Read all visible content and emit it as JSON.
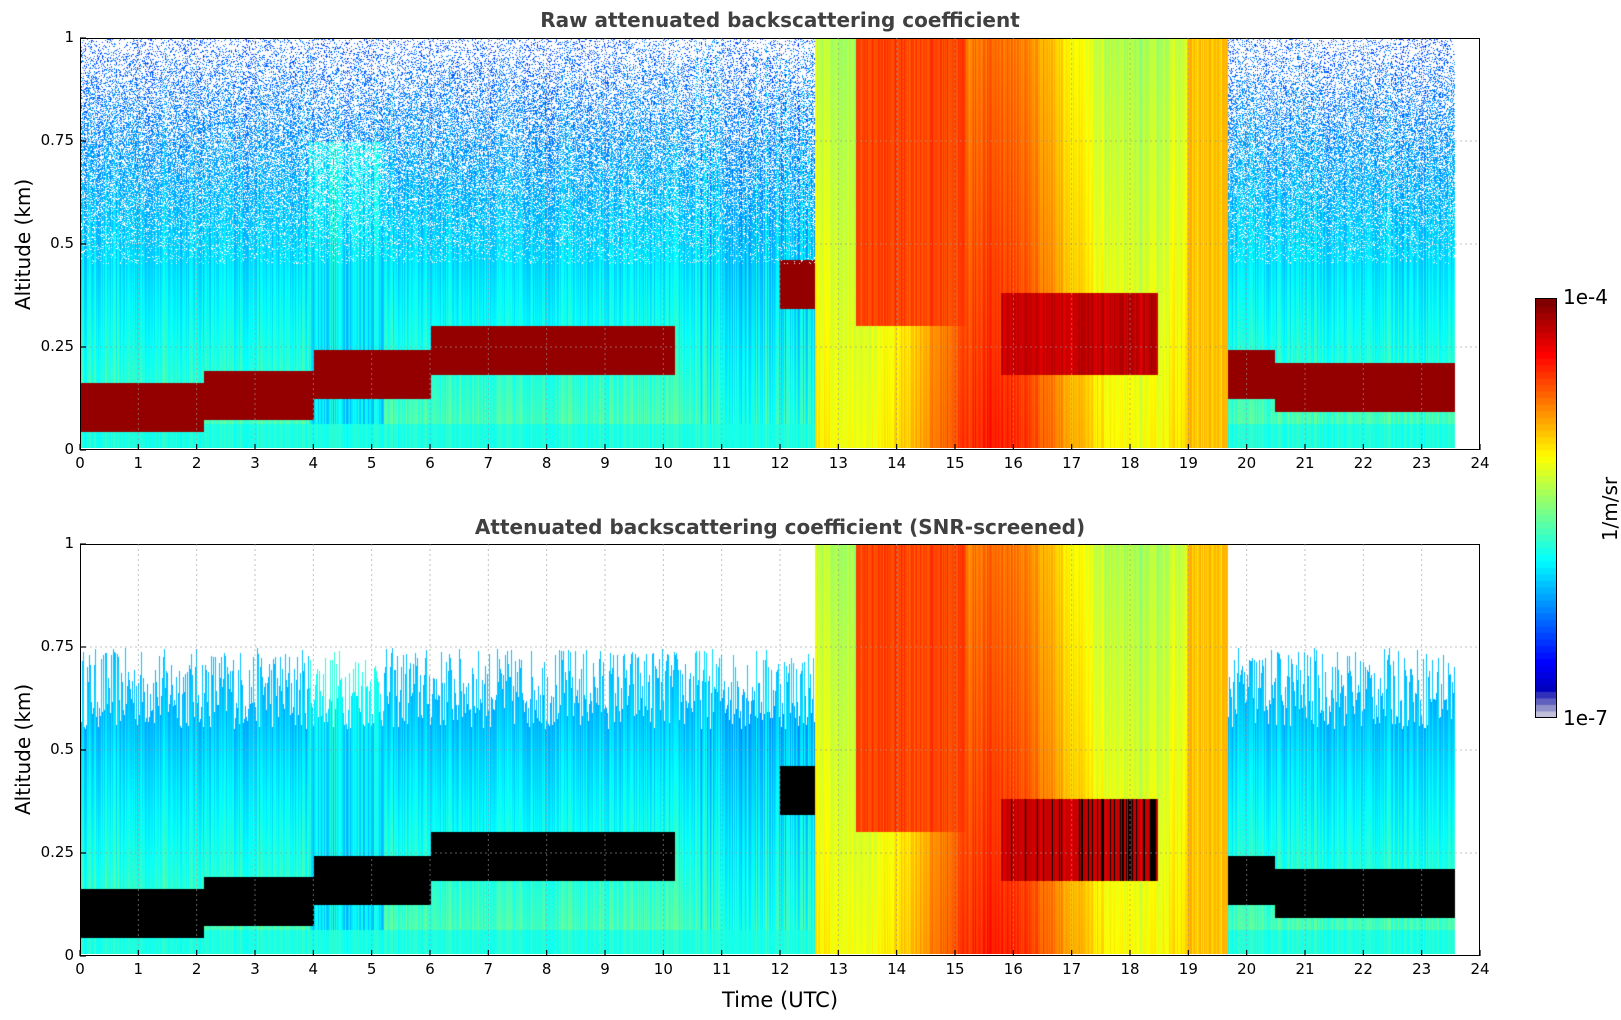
{
  "chart_data": [
    {
      "type": "heatmap",
      "title": "Raw attenuated backscattering coefficient",
      "xlabel": "",
      "ylabel": "Altitude (km)",
      "xlim": [
        0,
        24
      ],
      "ylim": [
        0,
        1
      ],
      "x_ticks": [
        "0",
        "1",
        "2",
        "3",
        "4",
        "5",
        "6",
        "7",
        "8",
        "9",
        "10",
        "11",
        "12",
        "13",
        "14",
        "15",
        "16",
        "17",
        "18",
        "19",
        "20",
        "21",
        "22",
        "23",
        "24"
      ],
      "y_ticks": [
        "0",
        "0.25",
        "0.5",
        "0.75",
        "1"
      ],
      "grid": true,
      "screened": false
    },
    {
      "type": "heatmap",
      "title": "Attenuated backscattering coefficient (SNR-screened)",
      "xlabel": "Time (UTC)",
      "ylabel": "Altitude (km)",
      "xlim": [
        0,
        24
      ],
      "ylim": [
        0,
        1
      ],
      "x_ticks": [
        "0",
        "1",
        "2",
        "3",
        "4",
        "5",
        "6",
        "7",
        "8",
        "9",
        "10",
        "11",
        "12",
        "13",
        "14",
        "15",
        "16",
        "17",
        "18",
        "19",
        "20",
        "21",
        "22",
        "23",
        "24"
      ],
      "y_ticks": [
        "0",
        "0.25",
        "0.5",
        "0.75",
        "1"
      ],
      "grid": true,
      "screened": true
    }
  ],
  "colorbar": {
    "max_label": "1e-4",
    "min_label": "1e-7",
    "unit": "1/m/sr",
    "colormap": "jet"
  }
}
